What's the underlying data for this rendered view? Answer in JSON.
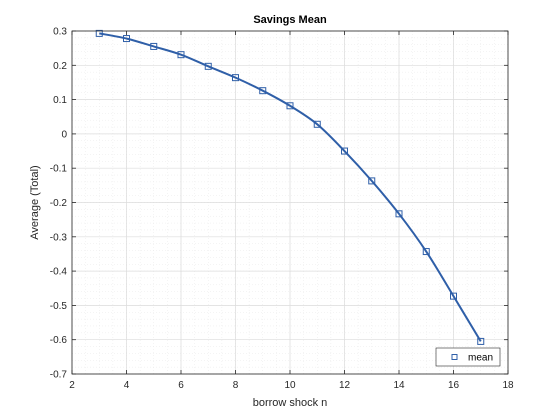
{
  "chart_data": {
    "type": "line",
    "title": "Savings Mean",
    "xlabel": "borrow shock n",
    "ylabel": "Average (Total)",
    "xlim": [
      2,
      18
    ],
    "ylim": [
      -0.7,
      0.3
    ],
    "xticks": [
      2,
      4,
      6,
      8,
      10,
      12,
      14,
      16,
      18
    ],
    "yticks": [
      0.3,
      0.2,
      0.1,
      0,
      -0.1,
      -0.2,
      -0.3,
      -0.4,
      -0.5,
      -0.6,
      -0.7
    ],
    "grid": true,
    "minor_grid": true,
    "legend_position": "bottom-right",
    "series": [
      {
        "name": "mean",
        "color": "#2f5fa8",
        "marker": "square",
        "x": [
          3,
          4,
          5,
          6,
          7,
          8,
          9,
          10,
          11,
          12,
          13,
          14,
          15,
          16,
          17
        ],
        "y": [
          0.293,
          0.278,
          0.255,
          0.231,
          0.197,
          0.164,
          0.126,
          0.082,
          0.028,
          -0.05,
          -0.137,
          -0.233,
          -0.343,
          -0.473,
          -0.605
        ]
      }
    ]
  }
}
